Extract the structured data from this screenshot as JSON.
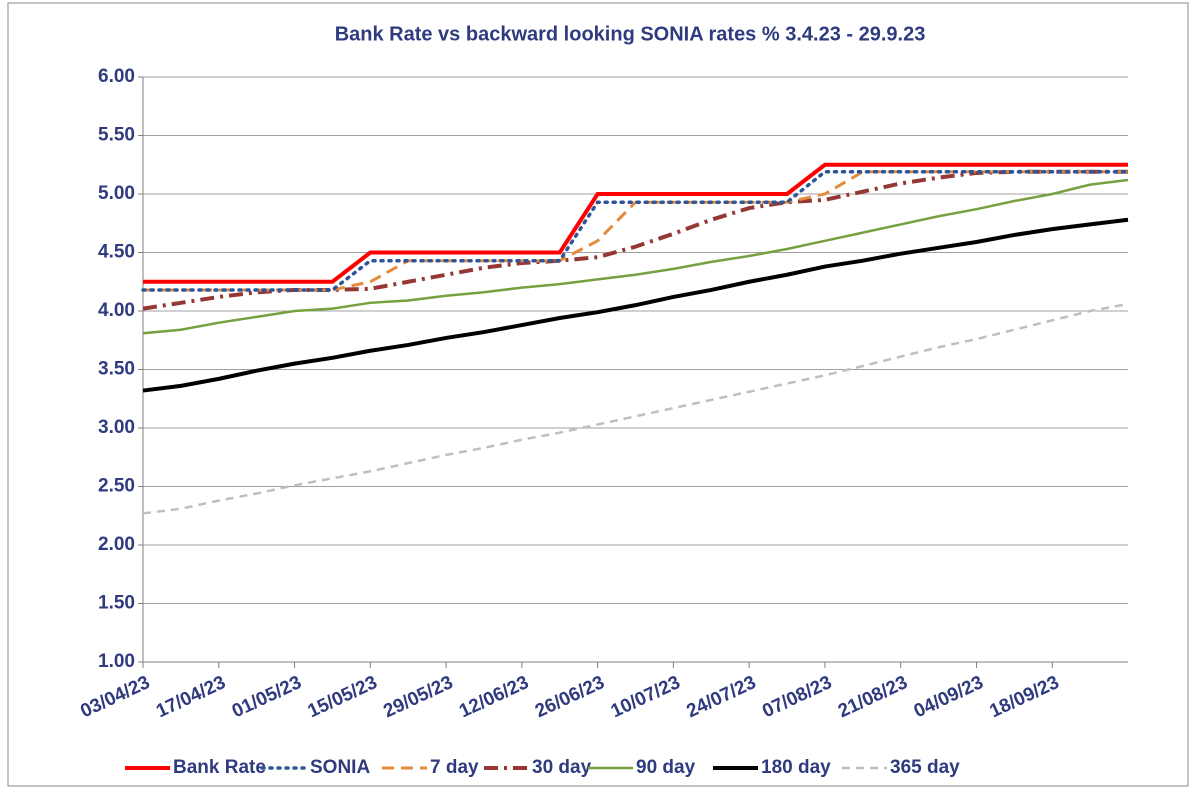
{
  "chart_data": {
    "type": "line",
    "title": "Bank Rate vs backward looking SONIA rates % 3.4.23 - 29.9.23",
    "categories": [
      "03/04/23",
      null,
      "17/04/23",
      null,
      "01/05/23",
      null,
      "15/05/23",
      null,
      "29/05/23",
      null,
      "12/06/23",
      null,
      "26/06/23",
      null,
      "10/07/23",
      null,
      "24/07/23",
      null,
      "07/08/23",
      null,
      "21/08/23",
      null,
      "04/09/23",
      null,
      "18/09/23",
      null,
      null
    ],
    "series": [
      {
        "name": "Bank Rate",
        "color": "#ff0000",
        "values": [
          4.25,
          4.25,
          4.25,
          4.25,
          4.25,
          4.25,
          4.5,
          4.5,
          4.5,
          4.5,
          4.5,
          4.5,
          5.0,
          5.0,
          5.0,
          5.0,
          5.0,
          5.0,
          5.25,
          5.25,
          5.25,
          5.25,
          5.25,
          5.25,
          5.25,
          5.25,
          5.25
        ]
      },
      {
        "name": "SONIA",
        "color": "#2e5597",
        "values": [
          4.18,
          4.18,
          4.18,
          4.18,
          4.18,
          4.18,
          4.43,
          4.43,
          4.43,
          4.43,
          4.43,
          4.43,
          4.93,
          4.93,
          4.93,
          4.93,
          4.93,
          4.93,
          5.19,
          5.19,
          5.19,
          5.19,
          5.19,
          5.19,
          5.19,
          5.19,
          5.19
        ]
      },
      {
        "name": "7 day",
        "color": "#e48b3c",
        "values": [
          4.18,
          4.18,
          4.18,
          4.18,
          4.18,
          4.18,
          4.25,
          4.43,
          4.43,
          4.43,
          4.43,
          4.43,
          4.6,
          4.93,
          4.93,
          4.93,
          4.93,
          4.93,
          5.0,
          5.19,
          5.19,
          5.19,
          5.19,
          5.19,
          5.19,
          5.19,
          5.19
        ]
      },
      {
        "name": "30 day",
        "color": "#953735",
        "values": [
          4.02,
          4.07,
          4.12,
          4.16,
          4.18,
          4.18,
          4.19,
          4.25,
          4.31,
          4.37,
          4.41,
          4.43,
          4.46,
          4.55,
          4.66,
          4.78,
          4.88,
          4.93,
          4.95,
          5.02,
          5.09,
          5.14,
          5.18,
          5.19,
          5.19,
          5.19,
          5.19
        ]
      },
      {
        "name": "90 day",
        "color": "#77a040",
        "values": [
          3.81,
          3.84,
          3.9,
          3.95,
          4.0,
          4.02,
          4.07,
          4.09,
          4.13,
          4.16,
          4.2,
          4.23,
          4.27,
          4.31,
          4.36,
          4.42,
          4.47,
          4.53,
          4.6,
          4.67,
          4.74,
          4.81,
          4.87,
          4.94,
          5.0,
          5.08,
          5.12
        ]
      },
      {
        "name": "180 day",
        "color": "#000000",
        "values": [
          3.32,
          3.36,
          3.42,
          3.49,
          3.55,
          3.6,
          3.66,
          3.71,
          3.77,
          3.82,
          3.88,
          3.94,
          3.99,
          4.05,
          4.12,
          4.18,
          4.25,
          4.31,
          4.38,
          4.43,
          4.49,
          4.54,
          4.59,
          4.65,
          4.7,
          4.74,
          4.78
        ]
      },
      {
        "name": "365 day",
        "color": "#bfbfbf",
        "values": [
          2.27,
          2.31,
          2.38,
          2.44,
          2.51,
          2.57,
          2.63,
          2.7,
          2.77,
          2.83,
          2.9,
          2.96,
          3.03,
          3.1,
          3.17,
          3.24,
          3.31,
          3.38,
          3.45,
          3.53,
          3.61,
          3.69,
          3.76,
          3.84,
          3.92,
          4.0,
          4.06
        ]
      }
    ],
    "ylim": [
      1,
      6
    ],
    "yticks": [
      {
        "value": 1,
        "label": "1.00"
      },
      {
        "value": 1.5,
        "label": "1.50"
      },
      {
        "value": 2,
        "label": "2.00"
      },
      {
        "value": 2.5,
        "label": "2.50"
      },
      {
        "value": 3,
        "label": "3.00"
      },
      {
        "value": 3.5,
        "label": "3.50"
      },
      {
        "value": 4,
        "label": "4.00"
      },
      {
        "value": 4.5,
        "label": "4.50"
      },
      {
        "value": 5,
        "label": "5.00"
      },
      {
        "value": 5.5,
        "label": "5.50"
      },
      {
        "value": 6,
        "label": "6.00"
      }
    ],
    "grid": true
  }
}
